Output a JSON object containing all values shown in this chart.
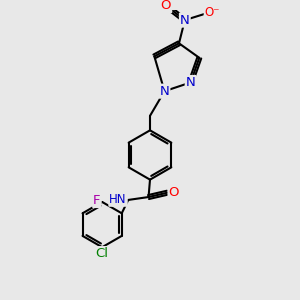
{
  "bg_color": "#e8e8e8",
  "bond_color": "#000000",
  "bond_width": 1.5,
  "atom_colors": {
    "N": "#0000cc",
    "O": "#ff0000",
    "Cl": "#008000",
    "F": "#aa00aa",
    "H": "#777777",
    "C": "#000000"
  },
  "font_size": 8.5,
  "fig_size": [
    3.0,
    3.0
  ],
  "dpi": 100,
  "xlim": [
    0.0,
    10.0
  ],
  "ylim": [
    0.0,
    10.0
  ]
}
